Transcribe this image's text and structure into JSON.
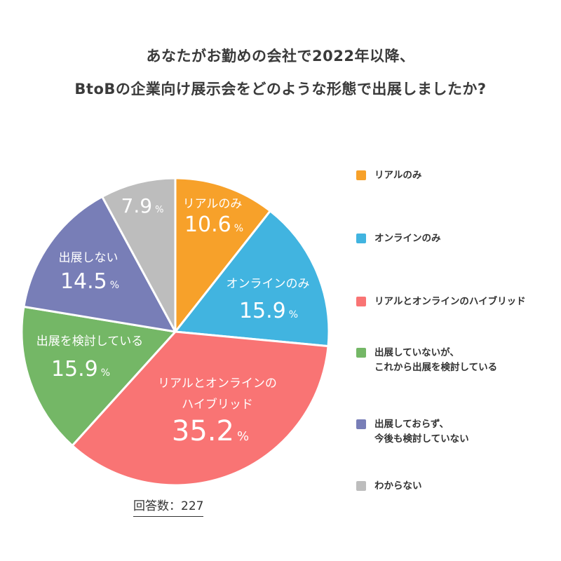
{
  "title": {
    "line1": "あなたがお勤めの会社で2022年以降、",
    "line2": "BtoBの企業向け展示会をどのような形態で出展しましたか?"
  },
  "chart_data": {
    "type": "pie",
    "title": "あなたがお勤めの会社で2022年以降、BtoBの企業向け展示会をどのような形態で出展しましたか?",
    "unit": "%",
    "slices": [
      {
        "label_lines": [
          "リアルのみ"
        ],
        "value": 10.6,
        "value_text": "10.6",
        "color": "#F7A12A",
        "legend_lines": [
          "リアルのみ"
        ]
      },
      {
        "label_lines": [
          "オンラインのみ"
        ],
        "value": 15.9,
        "value_text": "15.9",
        "color": "#41B4E0",
        "legend_lines": [
          "オンラインのみ"
        ]
      },
      {
        "label_lines": [
          "リアルとオンラインの",
          "ハイブリッド"
        ],
        "value": 35.2,
        "value_text": "35.2",
        "color": "#F97474",
        "legend_lines": [
          "リアルとオンラインのハイブリッド"
        ]
      },
      {
        "label_lines": [
          "出展を検討している"
        ],
        "value": 15.9,
        "value_text": "15.9",
        "color": "#74B766",
        "legend_lines": [
          "出展していないが、",
          "これから出展を検討している"
        ]
      },
      {
        "label_lines": [
          "出展しない"
        ],
        "value": 14.5,
        "value_text": "14.5",
        "color": "#787EB7",
        "legend_lines": [
          "出展しておらず、",
          "今後も検討していない"
        ]
      },
      {
        "label_lines": [],
        "value": 7.9,
        "value_text": "7.9",
        "color": "#BDBDBD",
        "legend_lines": [
          "わからない"
        ]
      }
    ],
    "legend_placement": "right"
  },
  "footer": {
    "count_label": "回答数：227"
  }
}
